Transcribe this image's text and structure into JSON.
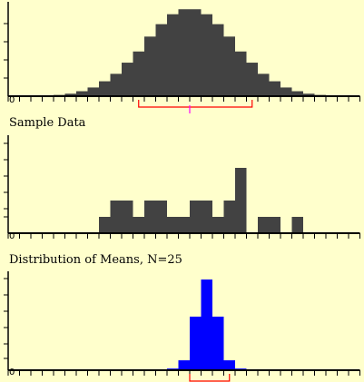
{
  "colors": {
    "background": "#ffffcc",
    "axis": "#000000",
    "population_bar": "#424242",
    "sample_bar": "#424242",
    "means_bar": "#0000ff",
    "sd_bracket": "#ff0000",
    "mean_marker": "#ff00ff"
  },
  "panels": {
    "population": {
      "title": "",
      "zero_label": "0"
    },
    "sample": {
      "title": "Sample Data",
      "zero_label": "0"
    },
    "means": {
      "title": "Distribution of Means, N=25",
      "zero_label": "0"
    }
  },
  "chart_data": [
    {
      "type": "bar",
      "name": "population",
      "title": "",
      "x_tick_count": 31,
      "y_tick_count": 5,
      "values": [
        0,
        0,
        0,
        0,
        0.5,
        1,
        2,
        3.5,
        6,
        9,
        13.5,
        18,
        24,
        29,
        33,
        35,
        35,
        33,
        29,
        24,
        18,
        13.5,
        9,
        6,
        3.5,
        2,
        1,
        0.5,
        0,
        0,
        0
      ],
      "ylim": [
        0,
        38
      ],
      "mean_marker_bin": 16,
      "sd_bracket_bins": [
        11.5,
        21.5
      ]
    },
    {
      "type": "bar",
      "name": "sample",
      "title": "Sample Data",
      "x_tick_count": 31,
      "y_tick_count": 6,
      "values": [
        0,
        0,
        0,
        0,
        0,
        0,
        0,
        0,
        1,
        2,
        2,
        1,
        2,
        2,
        1,
        1,
        2,
        2,
        1,
        2,
        4,
        0,
        1,
        1,
        0,
        1,
        0,
        0,
        0,
        0,
        0
      ],
      "ylim": [
        0,
        6
      ]
    },
    {
      "type": "bar",
      "name": "means",
      "title": "Distribution of Means, N=25",
      "x_tick_count": 31,
      "y_tick_count": 6,
      "values": [
        0,
        0,
        0,
        0,
        0,
        0,
        0,
        0,
        0,
        0,
        0,
        0,
        0,
        0,
        0.2,
        1.2,
        6.5,
        11,
        6.5,
        1.2,
        0.2,
        0,
        0,
        0,
        0,
        0,
        0,
        0,
        0,
        0,
        0
      ],
      "ylim": [
        0,
        12
      ],
      "sd_bracket_bins": [
        16,
        19.5
      ]
    }
  ]
}
